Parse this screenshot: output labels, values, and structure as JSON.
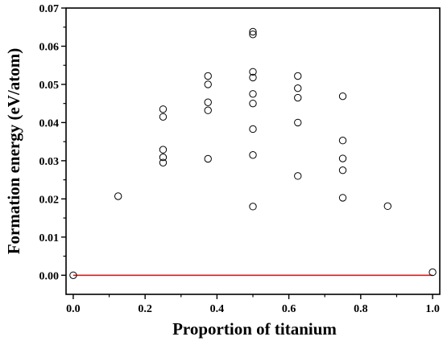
{
  "chart_data": {
    "type": "scatter",
    "title": "",
    "xlabel": "Proportion of titanium",
    "ylabel": "Formation energy (eV/atom)",
    "xlim": [
      -0.02,
      1.02
    ],
    "ylim": [
      -0.005,
      0.07
    ],
    "xticks": [
      "0.0",
      "0.2",
      "0.4",
      "0.6",
      "0.8",
      "1.0"
    ],
    "xtick_values": [
      0.0,
      0.2,
      0.4,
      0.6,
      0.8,
      1.0
    ],
    "yticks": [
      "0.00",
      "0.01",
      "0.02",
      "0.03",
      "0.04",
      "0.05",
      "0.06",
      "0.07"
    ],
    "ytick_values": [
      0.0,
      0.01,
      0.02,
      0.03,
      0.04,
      0.05,
      0.06,
      0.07
    ],
    "grid": false,
    "legend": "none",
    "marker": "open-circle",
    "marker_color": "#000000",
    "hull_line": {
      "x": [
        0.0,
        1.0
      ],
      "y": [
        0.0,
        0.0
      ],
      "color": "#cc2222"
    },
    "series": [
      {
        "points": [
          [
            0.0,
            0.0
          ],
          [
            0.125,
            0.0207
          ],
          [
            0.25,
            0.0435
          ],
          [
            0.25,
            0.0415
          ],
          [
            0.25,
            0.0329
          ],
          [
            0.25,
            0.0309
          ],
          [
            0.25,
            0.0295
          ],
          [
            0.375,
            0.0522
          ],
          [
            0.375,
            0.05
          ],
          [
            0.375,
            0.0453
          ],
          [
            0.375,
            0.0432
          ],
          [
            0.375,
            0.0305
          ],
          [
            0.5,
            0.0638
          ],
          [
            0.5,
            0.0631
          ],
          [
            0.5,
            0.0533
          ],
          [
            0.5,
            0.0518
          ],
          [
            0.5,
            0.0475
          ],
          [
            0.5,
            0.045
          ],
          [
            0.5,
            0.0383
          ],
          [
            0.5,
            0.0315
          ],
          [
            0.5,
            0.018
          ],
          [
            0.625,
            0.0522
          ],
          [
            0.625,
            0.049
          ],
          [
            0.625,
            0.0465
          ],
          [
            0.625,
            0.04
          ],
          [
            0.625,
            0.026
          ],
          [
            0.75,
            0.0469
          ],
          [
            0.75,
            0.0353
          ],
          [
            0.75,
            0.0306
          ],
          [
            0.75,
            0.0275
          ],
          [
            0.75,
            0.0203
          ],
          [
            0.875,
            0.0181
          ],
          [
            1.0,
            0.0008
          ]
        ]
      }
    ]
  }
}
